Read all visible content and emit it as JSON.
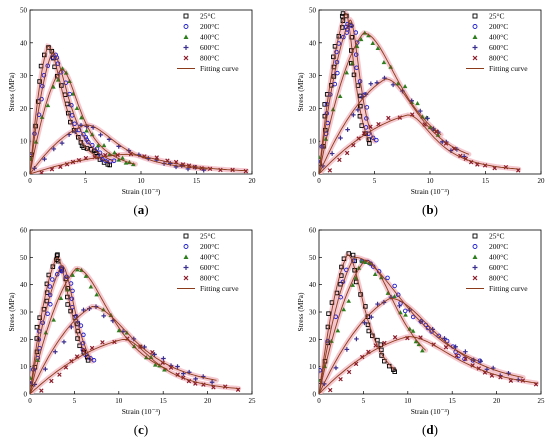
{
  "legend_labels": [
    "25°C",
    "200°C",
    "400°C",
    "600°C",
    "800°C",
    "Fitting curve"
  ],
  "colors": {
    "s25": "#000000",
    "s200": "#1f1fd0",
    "s400": "#2e7d1e",
    "s600": "#3a2f8f",
    "s800": "#8b1c2a",
    "fit": "#8b3a1a",
    "band": "#f2bcc4"
  },
  "chart_data": [
    {
      "id": "a",
      "type": "scatter",
      "caption": "(a)",
      "xlabel": "Strain (10⁻³)",
      "ylabel": "Stress (MPa)",
      "xlim": [
        0,
        20
      ],
      "ylim": [
        0,
        50
      ],
      "xticks": [
        "0",
        "5",
        "10",
        "15",
        "20"
      ],
      "yticks": [
        "0",
        "10",
        "20",
        "30",
        "40",
        "50"
      ],
      "legend_position": "top-right",
      "series": [
        {
          "name": "25°C",
          "peak_strain": 1.6,
          "peak_stress": 39,
          "end_strain": 7.2,
          "end_stress": 3.5
        },
        {
          "name": "200°C",
          "peak_strain": 2.0,
          "peak_stress": 37,
          "end_strain": 7.5,
          "end_stress": 4
        },
        {
          "name": "400°C",
          "peak_strain": 2.8,
          "peak_stress": 32,
          "end_strain": 9.5,
          "end_stress": 3
        },
        {
          "name": "600°C",
          "peak_strain": 5.0,
          "peak_stress": 15,
          "end_strain": 16,
          "end_stress": 1.5
        },
        {
          "name": "800°C",
          "peak_strain": 8.5,
          "peak_stress": 6,
          "end_strain": 19.5,
          "end_stress": 1
        }
      ]
    },
    {
      "id": "b",
      "type": "scatter",
      "caption": "(b)",
      "xlabel": "Strain (10⁻³)",
      "ylabel": "Stress (MPa)",
      "xlim": [
        0,
        20
      ],
      "ylim": [
        0,
        50
      ],
      "xticks": [
        "0",
        "5",
        "10",
        "15",
        "20"
      ],
      "yticks": [
        "0",
        "10",
        "20",
        "30",
        "40",
        "50"
      ],
      "legend_position": "top-right",
      "series": [
        {
          "name": "25°C",
          "peak_strain": 2.4,
          "peak_stress": 49,
          "end_strain": 4.5,
          "end_stress": 10
        },
        {
          "name": "200°C",
          "peak_strain": 2.8,
          "peak_stress": 47,
          "end_strain": 5.0,
          "end_stress": 10
        },
        {
          "name": "400°C",
          "peak_strain": 4.0,
          "peak_stress": 43,
          "end_strain": 11,
          "end_stress": 12
        },
        {
          "name": "600°C",
          "peak_strain": 6.0,
          "peak_stress": 29,
          "end_strain": 13.5,
          "end_stress": 6
        },
        {
          "name": "800°C",
          "peak_strain": 8.0,
          "peak_stress": 18,
          "end_strain": 18,
          "end_stress": 1.5
        }
      ]
    },
    {
      "id": "c",
      "type": "scatter",
      "caption": "(c)",
      "xlabel": "Strain (10⁻³)",
      "ylabel": "Stress (MPa)",
      "xlim": [
        0,
        25
      ],
      "ylim": [
        0,
        60
      ],
      "xticks": [
        "0",
        "5",
        "10",
        "15",
        "20",
        "25"
      ],
      "yticks": [
        "0",
        "10",
        "20",
        "30",
        "40",
        "50",
        "60"
      ],
      "legend_position": "top-right",
      "series": [
        {
          "name": "25°C",
          "peak_strain": 3.0,
          "peak_stress": 50,
          "end_strain": 6.5,
          "end_stress": 13
        },
        {
          "name": "200°C",
          "peak_strain": 3.6,
          "peak_stress": 47,
          "end_strain": 7.0,
          "end_stress": 12
        },
        {
          "name": "400°C",
          "peak_strain": 5.2,
          "peak_stress": 46,
          "end_strain": 15.5,
          "end_stress": 9
        },
        {
          "name": "600°C",
          "peak_strain": 7.0,
          "peak_stress": 32,
          "end_strain": 21,
          "end_stress": 5
        },
        {
          "name": "800°C",
          "peak_strain": 10.5,
          "peak_stress": 20,
          "end_strain": 23.5,
          "end_stress": 2
        }
      ]
    },
    {
      "id": "d",
      "type": "scatter",
      "caption": "(d)",
      "xlabel": "Strain (10⁻³)",
      "ylabel": "Stress (MPa)",
      "xlim": [
        0,
        25
      ],
      "ylim": [
        0,
        60
      ],
      "xticks": [
        "0",
        "5",
        "10",
        "15",
        "20",
        "25"
      ],
      "yticks": [
        "0",
        "10",
        "20",
        "30",
        "40",
        "50",
        "60"
      ],
      "legend_position": "top-right",
      "series": [
        {
          "name": "25°C",
          "peak_strain": 3.2,
          "peak_stress": 51,
          "end_strain": 8.5,
          "end_stress": 9
        },
        {
          "name": "200°C",
          "peak_strain": 4.0,
          "peak_stress": 50,
          "end_strain": 18,
          "end_stress": 12
        },
        {
          "name": "400°C",
          "peak_strain": 5.2,
          "peak_stress": 49,
          "end_strain": 12,
          "end_stress": 16
        },
        {
          "name": "600°C",
          "peak_strain": 8.0,
          "peak_stress": 35,
          "end_strain": 23,
          "end_stress": 6
        },
        {
          "name": "800°C",
          "peak_strain": 10.0,
          "peak_stress": 21,
          "end_strain": 24.5,
          "end_stress": 4
        }
      ]
    }
  ]
}
